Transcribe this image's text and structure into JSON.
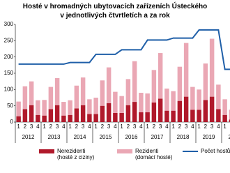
{
  "chart_data": {
    "type": "bar-line",
    "title": "Hosté v hromadných ubytovacích zařízeních Ústeckého",
    "subtitle": "v jednotlivých čtvrtletích a za rok",
    "categories": [
      "1",
      "2",
      "3",
      "4",
      "1",
      "2",
      "3",
      "4",
      "1",
      "2",
      "3",
      "4",
      "1",
      "2",
      "3",
      "4",
      "1",
      "2",
      "3",
      "4",
      "1",
      "2",
      "3",
      "4",
      "1",
      "2",
      "3",
      "4",
      "1",
      "2",
      "3",
      "4",
      "1",
      "2"
    ],
    "year_labels": [
      "2012",
      "2013",
      "2014",
      "2015",
      "2016",
      "2017",
      "2018",
      "2019",
      "2020"
    ],
    "ylim": [
      0,
      300
    ],
    "yticks": [
      0,
      50,
      100,
      150,
      200,
      250,
      300
    ],
    "series": [
      {
        "name": "Nerezidenti (hosté z ciziny)",
        "color": "#b0192b",
        "type": "bar",
        "values": [
          18,
          40,
          52,
          22,
          20,
          40,
          52,
          20,
          22,
          42,
          52,
          25,
          25,
          50,
          58,
          28,
          28,
          52,
          62,
          30,
          30,
          60,
          72,
          35,
          35,
          65,
          78,
          38,
          38,
          68,
          78,
          40,
          22,
          8
        ]
      },
      {
        "name": "Rezidenti (domácí hosté)",
        "color": "#eaa7b4",
        "type": "bar",
        "values": [
          45,
          70,
          73,
          45,
          48,
          68,
          83,
          42,
          45,
          70,
          85,
          45,
          50,
          78,
          110,
          65,
          52,
          80,
          125,
          60,
          58,
          100,
          140,
          68,
          60,
          105,
          165,
          70,
          62,
          112,
          178,
          75,
          48,
          30
        ]
      },
      {
        "name": "Počet hostů",
        "color": "#1f5fa8",
        "type": "line",
        "values": [
          178,
          178,
          178,
          178,
          178,
          178,
          178,
          178,
          183,
          183,
          183,
          183,
          208,
          208,
          208,
          208,
          222,
          222,
          222,
          222,
          252,
          252,
          252,
          252,
          258,
          258,
          258,
          258,
          283,
          283,
          283,
          283,
          162,
          162
        ]
      }
    ]
  }
}
